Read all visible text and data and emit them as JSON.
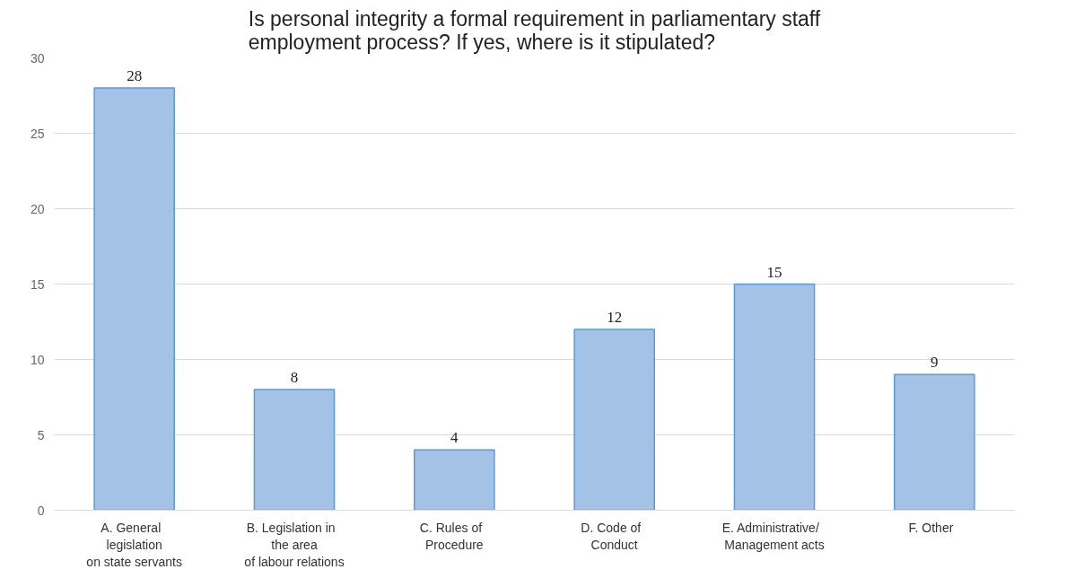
{
  "chart_data": {
    "type": "bar",
    "title": "Is personal integrity a formal requirement in parliamentary staff\nemployment process? If yes, where is it stipulated?",
    "categories": [
      "A.   General\nlegislation\non state servants",
      "B.   Legislation in\nthe area\nof labour relations",
      "C.   Rules of\nProcedure",
      "D.   Code of\nConduct",
      "E.   Administrative/\nManagement acts",
      "F.   Other"
    ],
    "values": [
      28,
      8,
      4,
      12,
      15,
      9
    ],
    "color": "#a3c2e6",
    "ylim": [
      0,
      30
    ],
    "yticks": [
      0,
      5,
      10,
      15,
      20,
      25,
      30
    ],
    "grid": "y",
    "data_labels": true
  }
}
